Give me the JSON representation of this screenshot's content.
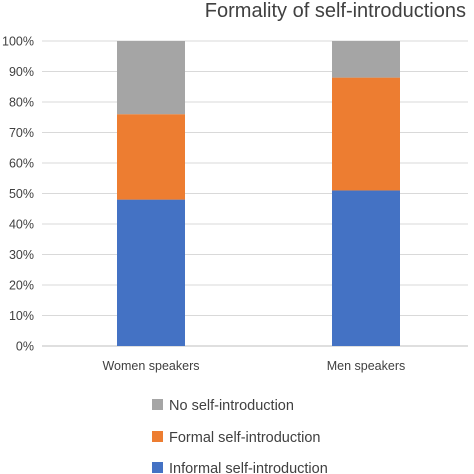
{
  "chart_data": {
    "type": "bar",
    "stacked": true,
    "title": "Formality of self-introductions",
    "xlabel": "",
    "ylabel": "",
    "ylim": [
      0,
      100
    ],
    "y_ticks": [
      "0%",
      "10%",
      "20%",
      "30%",
      "40%",
      "50%",
      "60%",
      "70%",
      "80%",
      "90%",
      "100%"
    ],
    "grid": true,
    "legend_position": "bottom",
    "categories": [
      "Women speakers",
      "Men speakers"
    ],
    "series": [
      {
        "name": "Informal self-introduction",
        "color": "#4472C4",
        "values": [
          48,
          51
        ]
      },
      {
        "name": "Formal self-introduction",
        "color": "#ED7D31",
        "values": [
          28,
          37
        ]
      },
      {
        "name": "No self-introduction",
        "color": "#A5A5A5",
        "values": [
          24,
          12
        ]
      }
    ]
  }
}
